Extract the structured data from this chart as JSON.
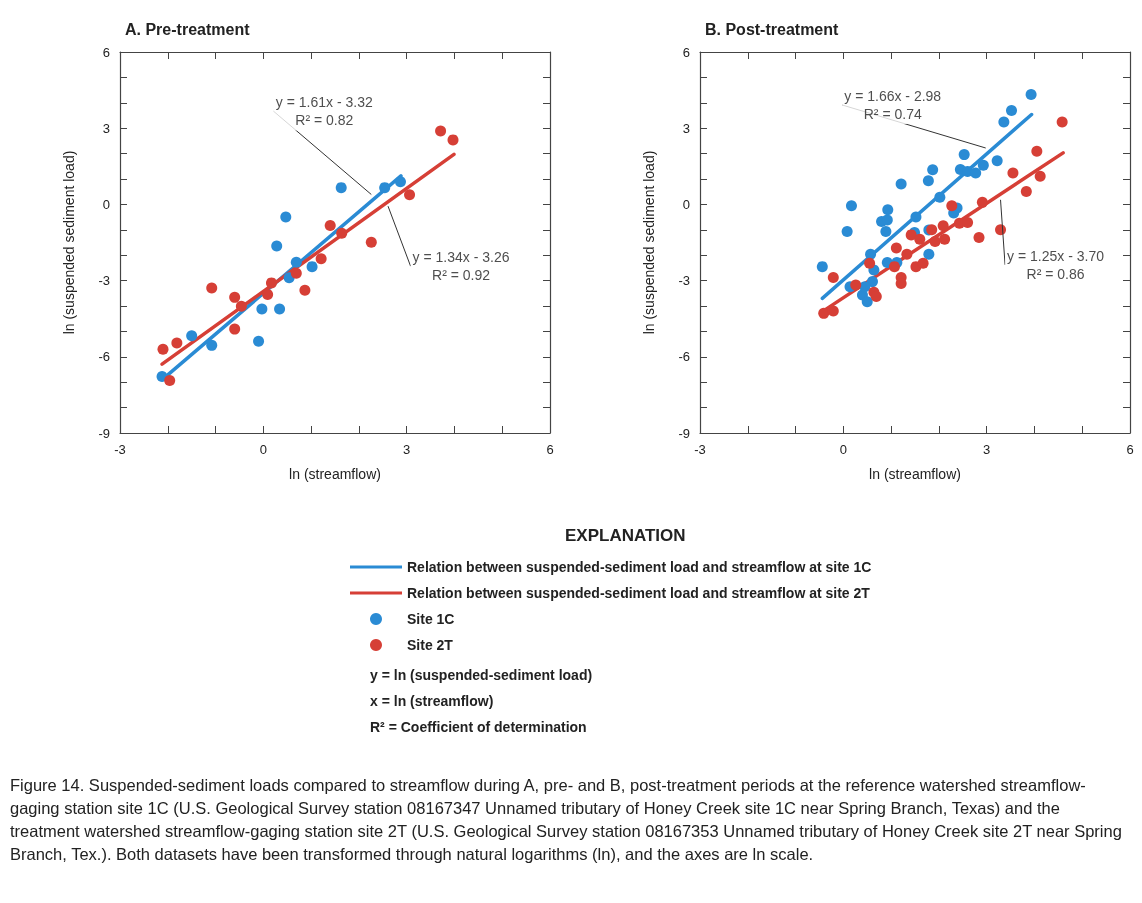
{
  "chart_data": [
    {
      "type": "scatter",
      "title": "A. Pre-treatment",
      "xlabel": "ln (streamflow)",
      "ylabel": "ln (suspended sediment load)",
      "legend": "bottom",
      "legend_title": "EXPLANATION",
      "xlim": [
        -3,
        6
      ],
      "xticks": [
        -3,
        {
          "value": -2,
          "label": null
        },
        {
          "value": -1,
          "label": null
        },
        0,
        {
          "value": 1,
          "label": null
        },
        {
          "value": 2,
          "label": null
        },
        3,
        {
          "value": 4,
          "label": null
        },
        {
          "value": 5,
          "label": null
        },
        6
      ],
      "ylim": [
        -9,
        6
      ],
      "yticks": [
        -9,
        {
          "value": -8,
          "label": null
        },
        {
          "value": -7,
          "label": null
        },
        -6,
        {
          "value": -5,
          "label": null
        },
        {
          "value": -4,
          "label": null
        },
        -3,
        {
          "value": -2,
          "label": null
        },
        {
          "value": -1,
          "label": null
        },
        0,
        {
          "value": 1,
          "label": null
        },
        {
          "value": 2,
          "label": null
        },
        3,
        {
          "value": 4,
          "label": null
        },
        {
          "value": 5,
          "label": null
        },
        6
      ],
      "series": [
        {
          "type": "line",
          "marker": "none",
          "name": "Relation between suspended-sediment load and streamflow at site 1C",
          "color": "#2a8bd4",
          "x": [
            -2.08,
            2.88
          ],
          "values": [
            -6.84,
            1.12
          ]
        },
        {
          "type": "line",
          "marker": "none",
          "name": "Relation between suspended-sediment load and streamflow at site 2T",
          "color": "#d63f36",
          "x": [
            -2.12,
            3.99
          ],
          "values": [
            -6.29,
            1.97
          ]
        },
        {
          "marker": "circle",
          "name": "Site 1C",
          "color": "#2a8bd4",
          "x": [
            -2.12,
            -1.5,
            -1.08,
            -0.1,
            -0.03,
            0.34,
            0.28,
            0.47,
            0.54,
            0.69,
            1.02,
            1.63,
            2.54,
            2.87
          ],
          "values": [
            -6.78,
            -5.17,
            -5.55,
            -5.39,
            -4.12,
            -4.12,
            -1.64,
            -0.5,
            -2.89,
            -2.28,
            -2.45,
            0.66,
            0.66,
            0.89
          ]
        },
        {
          "marker": "circle",
          "name": "Site 2T",
          "color": "#d63f36",
          "x": [
            -2.1,
            -1.96,
            -1.81,
            -1.08,
            -0.6,
            -0.6,
            -0.46,
            0.09,
            0.17,
            0.69,
            0.87,
            1.21,
            1.4,
            1.64,
            2.26,
            3.06,
            3.71,
            3.97
          ],
          "values": [
            -5.7,
            -6.93,
            -5.46,
            -3.29,
            -3.66,
            -4.91,
            -4.01,
            -3.55,
            -3.09,
            -2.71,
            -3.38,
            -2.14,
            -0.83,
            -1.14,
            -1.49,
            0.38,
            2.89,
            2.54
          ]
        }
      ],
      "annotations": [
        {
          "text": "y = 1.61x - 3.32\nR² = 0.82",
          "x": 2.26,
          "y": 0.39
        },
        {
          "text": "y = 1.34x - 3.26\nR² = 0.92",
          "x": 2.61,
          "y": -0.07
        },
        "y = ln (suspended-sediment load)",
        "x = ln (streamflow)",
        "R² = Coefficient of determination"
      ]
    },
    {
      "type": "scatter",
      "title": "B. Post-treatment",
      "xlabel": "ln (streamflow)",
      "ylabel": "ln (suspended sediment load)",
      "xlim": [
        -3,
        6
      ],
      "xticks": [
        -3,
        {
          "value": -2,
          "label": null
        },
        {
          "value": -1,
          "label": null
        },
        0,
        {
          "value": 1,
          "label": null
        },
        {
          "value": 2,
          "label": null
        },
        3,
        {
          "value": 4,
          "label": null
        },
        {
          "value": 5,
          "label": null
        },
        6
      ],
      "ylim": [
        -9,
        6
      ],
      "yticks": [
        -9,
        {
          "value": -8,
          "label": null
        },
        {
          "value": -7,
          "label": null
        },
        -6,
        {
          "value": -5,
          "label": null
        },
        {
          "value": -4,
          "label": null
        },
        -3,
        {
          "value": -2,
          "label": null
        },
        {
          "value": -1,
          "label": null
        },
        0,
        {
          "value": 1,
          "label": null
        },
        {
          "value": 2,
          "label": null
        },
        3,
        {
          "value": 4,
          "label": null
        },
        {
          "value": 5,
          "label": null
        },
        6
      ],
      "series": [
        {
          "type": "line",
          "marker": "none",
          "color": "#2a8bd4",
          "x": [
            -0.44,
            3.94
          ],
          "values": [
            -3.7,
            3.54
          ]
        },
        {
          "type": "line",
          "marker": "none",
          "color": "#d63f36",
          "x": [
            -0.44,
            4.6
          ],
          "values": [
            -4.22,
            2.03
          ]
        },
        {
          "marker": "circle",
          "color": "#2a8bd4",
          "x": [
            -0.44,
            0.17,
            0.08,
            0.14,
            0.4,
            0.5,
            0.57,
            0.64,
            0.61,
            0.45,
            0.8,
            0.92,
            0.93,
            0.89,
            0.92,
            1.12,
            1.21,
            1.52,
            1.49,
            1.78,
            1.87,
            1.79,
            1.79,
            2.02,
            2.31,
            2.38,
            2.45,
            2.53,
            2.6,
            2.77,
            2.93,
            3.22,
            3.36,
            3.52,
            3.93
          ],
          "values": [
            -2.45,
            -0.05,
            -1.07,
            -3.24,
            -3.57,
            -3.83,
            -1.96,
            -2.58,
            -3.04,
            -3.24,
            -0.67,
            -0.61,
            -0.21,
            -1.07,
            -2.29,
            -2.29,
            0.8,
            -0.5,
            -1.11,
            0.93,
            1.36,
            -1.01,
            -1.96,
            0.28,
            -0.34,
            -0.14,
            1.37,
            1.96,
            1.3,
            1.24,
            1.54,
            1.72,
            3.24,
            3.7,
            4.33
          ]
        },
        {
          "marker": "circle",
          "color": "#d63f36",
          "x": [
            -0.41,
            -0.21,
            -0.21,
            0.26,
            0.55,
            0.64,
            0.69,
            1.07,
            1.11,
            1.21,
            1.21,
            1.33,
            1.42,
            1.52,
            1.6,
            1.67,
            1.85,
            1.92,
            2.09,
            2.12,
            2.27,
            2.43,
            2.6,
            2.84,
            2.91,
            3.29,
            3.55,
            3.83,
            4.05,
            4.12,
            4.58
          ],
          "values": [
            -4.29,
            -4.2,
            -2.88,
            -3.17,
            -2.32,
            -3.46,
            -3.63,
            -2.45,
            -1.72,
            -2.88,
            -3.11,
            -1.96,
            -1.2,
            -2.45,
            -1.37,
            -2.32,
            -1.0,
            -1.46,
            -0.84,
            -1.37,
            -0.05,
            -0.74,
            -0.71,
            -1.3,
            0.08,
            -1.0,
            1.24,
            0.51,
            2.09,
            1.11,
            3.24
          ]
        }
      ],
      "annotations": [
        {
          "text": "y = 1.66x - 2.98\nR² = 0.74",
          "x": 2.98,
          "y": 2.22
        },
        {
          "text": "y = 1.25x - 3.70\nR² = 0.86",
          "x": 3.29,
          "y": 0.18
        },
        "Figure 14.    Suspended-sediment loads compared to streamflow during A, pre- and B, post-treatment periods at the reference watershed streamflow-gaging station site 1C (U.S. Geological Survey station 08167347 Unnamed tributary of Honey Creek site 1C near Spring Branch, Texas) and the treatment watershed streamflow-gaging station site 2T (U.S. Geological Survey station 08167353 Unnamed tributary of Honey Creek site 2T near Spring Branch, Tex.). Both datasets have been transformed through natural logarithms (ln), and the axes are ln scale."
      ]
    }
  ]
}
